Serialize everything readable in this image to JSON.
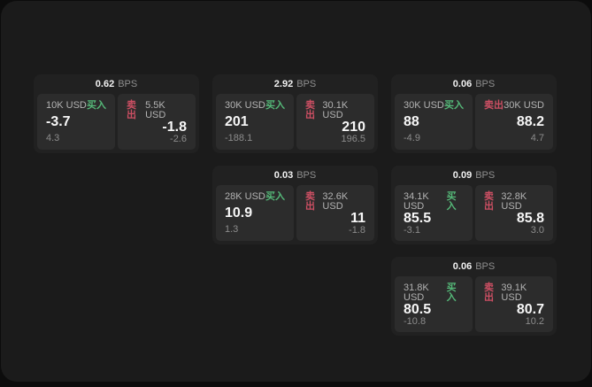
{
  "labels": {
    "buy": "买入",
    "sell": "卖出",
    "bps_unit": "BPS"
  },
  "colors": {
    "background": "#0c0c0c",
    "panel": "#1b1b1b",
    "card": "#212121",
    "tile": "#2c2c2c",
    "text_primary": "#f7f7f7",
    "text_secondary": "#8c8c8c",
    "buy_green": "#55b878",
    "sell_red": "#cc4f63"
  },
  "cards": [
    {
      "bps": "0.62",
      "buy": {
        "size": "10K USD",
        "price": "-3.7",
        "change": "4.3"
      },
      "sell": {
        "size": "5.5K USD",
        "price": "-1.8",
        "change": "-2.6"
      }
    },
    {
      "bps": "2.92",
      "buy": {
        "size": "30K USD",
        "price": "201",
        "change": "-188.1"
      },
      "sell": {
        "size": "30.1K USD",
        "price": "210",
        "change": "196.5"
      }
    },
    {
      "bps": "0.06",
      "buy": {
        "size": "30K USD",
        "price": "88",
        "change": "-4.9"
      },
      "sell": {
        "size": "30K USD",
        "price": "88.2",
        "change": "4.7"
      }
    },
    {
      "bps": "0.03",
      "buy": {
        "size": "28K USD",
        "price": "10.9",
        "change": "1.3"
      },
      "sell": {
        "size": "32.6K USD",
        "price": "11",
        "change": "-1.8"
      }
    },
    {
      "bps": "0.09",
      "buy": {
        "size": "34.1K USD",
        "price": "85.5",
        "change": "-3.1"
      },
      "sell": {
        "size": "32.8K USD",
        "price": "85.8",
        "change": "3.0"
      }
    },
    {
      "bps": "0.06",
      "buy": {
        "size": "31.8K USD",
        "price": "80.5",
        "change": "-10.8"
      },
      "sell": {
        "size": "39.1K USD",
        "price": "80.7",
        "change": "10.2"
      }
    }
  ]
}
